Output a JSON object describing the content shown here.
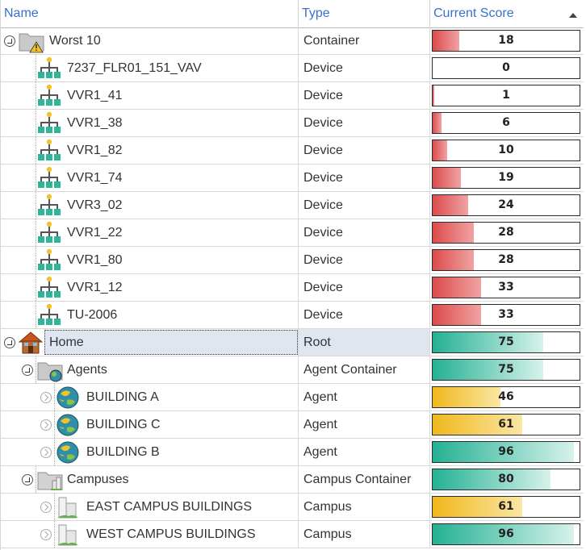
{
  "header": {
    "name": "Name",
    "type": "Type",
    "score": "Current Score"
  },
  "colors": {
    "red": "#e06666",
    "teal": "#2fb59a",
    "yellow": "#f2c12e",
    "selected": "#dfe6f0",
    "header_text": "#3a6fd1"
  },
  "rows": [
    {
      "name": "Worst 10",
      "type": "Container",
      "score": 18,
      "icon": "folder-warning-icon",
      "level": 0,
      "toggle": "expanded",
      "color": "red"
    },
    {
      "name": "7237_FLR01_151_VAV",
      "type": "Device",
      "score": 0,
      "icon": "device-tree-icon",
      "level": 1,
      "color": "red"
    },
    {
      "name": "VVR1_41",
      "type": "Device",
      "score": 1,
      "icon": "device-tree-icon",
      "level": 1,
      "color": "red"
    },
    {
      "name": "VVR1_38",
      "type": "Device",
      "score": 6,
      "icon": "device-tree-icon",
      "level": 1,
      "color": "red"
    },
    {
      "name": "VVR1_82",
      "type": "Device",
      "score": 10,
      "icon": "device-tree-icon",
      "level": 1,
      "color": "red"
    },
    {
      "name": "VVR1_74",
      "type": "Device",
      "score": 19,
      "icon": "device-tree-icon",
      "level": 1,
      "color": "red"
    },
    {
      "name": "VVR3_02",
      "type": "Device",
      "score": 24,
      "icon": "device-tree-icon",
      "level": 1,
      "color": "red"
    },
    {
      "name": "VVR1_22",
      "type": "Device",
      "score": 28,
      "icon": "device-tree-icon",
      "level": 1,
      "color": "red"
    },
    {
      "name": "VVR1_80",
      "type": "Device",
      "score": 28,
      "icon": "device-tree-icon",
      "level": 1,
      "color": "red"
    },
    {
      "name": "VVR1_12",
      "type": "Device",
      "score": 33,
      "icon": "device-tree-icon",
      "level": 1,
      "color": "red"
    },
    {
      "name": "TU-2006",
      "type": "Device",
      "score": 33,
      "icon": "device-tree-icon",
      "level": 1,
      "color": "red"
    },
    {
      "name": "Home",
      "type": "Root",
      "score": 75,
      "icon": "house-icon",
      "level": 0,
      "toggle": "expanded",
      "color": "teal",
      "selected": true
    },
    {
      "name": "Agents",
      "type": "Agent Container",
      "score": 75,
      "icon": "folder-globe-icon",
      "level": 1,
      "toggle": "expanded",
      "color": "teal"
    },
    {
      "name": "BUILDING A",
      "type": "Agent",
      "score": 46,
      "icon": "globe-icon",
      "level": 2,
      "toggle": "collapsed",
      "color": "yellow"
    },
    {
      "name": "BUILDING C",
      "type": "Agent",
      "score": 61,
      "icon": "globe-icon",
      "level": 2,
      "toggle": "collapsed",
      "color": "yellow"
    },
    {
      "name": "BUILDING B",
      "type": "Agent",
      "score": 96,
      "icon": "globe-icon",
      "level": 2,
      "toggle": "collapsed",
      "color": "teal"
    },
    {
      "name": "Campuses",
      "type": "Campus Container",
      "score": 80,
      "icon": "folder-campus-icon",
      "level": 1,
      "toggle": "expanded",
      "color": "teal"
    },
    {
      "name": "EAST CAMPUS BUILDINGS",
      "type": "Campus",
      "score": 61,
      "icon": "campus-icon",
      "level": 2,
      "toggle": "collapsed",
      "color": "yellow"
    },
    {
      "name": "WEST CAMPUS BUILDINGS",
      "type": "Campus",
      "score": 96,
      "icon": "campus-icon",
      "level": 2,
      "toggle": "collapsed",
      "color": "teal"
    }
  ]
}
